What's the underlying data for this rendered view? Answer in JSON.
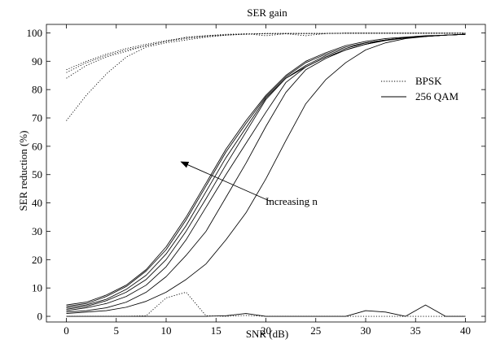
{
  "chart_data": {
    "type": "line",
    "title": "SER gain",
    "xlabel": "SNR (dB)",
    "ylabel": "SER reduction (%)",
    "xlim": [
      -2,
      42
    ],
    "ylim": [
      -2,
      103
    ],
    "xticks": [
      "0",
      "5",
      "10",
      "15",
      "20",
      "25",
      "30",
      "35",
      "40"
    ],
    "yticks": [
      "0",
      "10",
      "20",
      "30",
      "40",
      "50",
      "60",
      "70",
      "80",
      "90",
      "100"
    ],
    "grid": false,
    "legend": {
      "placement": "right",
      "entries": [
        {
          "label": "BPSK",
          "style": "dotted"
        },
        {
          "label": "256 QAM",
          "style": "solid"
        }
      ]
    },
    "annotation": {
      "text": "Increasing n",
      "arrow_from": [
        20.5,
        40.5
      ],
      "arrow_to": [
        11.5,
        54.5
      ]
    },
    "x": [
      0,
      2,
      4,
      6,
      8,
      10,
      12,
      14,
      16,
      18,
      20,
      22,
      24,
      26,
      28,
      30,
      32,
      34,
      36,
      38,
      40
    ],
    "series": [
      {
        "style": "solid",
        "values": [
          4,
          5,
          7.5,
          11,
          16.5,
          24.5,
          35,
          47,
          59,
          69,
          78,
          85,
          90,
          93,
          95.5,
          97,
          98,
          98.5,
          99,
          99.2,
          99.5
        ]
      },
      {
        "style": "solid",
        "values": [
          3.5,
          4.5,
          7,
          10.5,
          16,
          23.5,
          34,
          46,
          58,
          68,
          77.5,
          84.5,
          89.5,
          92.5,
          95,
          96.5,
          97.5,
          98.3,
          98.8,
          99.2,
          99.5
        ]
      },
      {
        "style": "solid",
        "values": [
          3,
          4,
          6,
          9.5,
          14.5,
          22,
          32,
          44,
          56,
          66.5,
          77,
          84,
          88.5,
          92,
          94.5,
          96.5,
          97.5,
          98.3,
          98.8,
          99.2,
          99.5
        ]
      },
      {
        "style": "solid",
        "values": [
          2.5,
          3.5,
          5.5,
          8.5,
          13,
          20,
          30,
          41.5,
          53.5,
          65,
          76.5,
          84,
          88,
          91.5,
          94,
          96,
          97.5,
          98.3,
          98.8,
          99.2,
          99.5
        ]
      },
      {
        "style": "solid",
        "values": [
          2,
          3,
          4.5,
          7,
          11,
          17.5,
          27,
          38.5,
          50,
          61,
          72,
          82.5,
          88,
          91.5,
          94,
          96,
          97.5,
          98.3,
          98.8,
          99.2,
          99.5
        ]
      },
      {
        "style": "solid",
        "values": [
          1.5,
          2,
          3,
          5,
          8.5,
          14,
          21.5,
          30,
          42,
          54,
          67,
          79,
          87,
          91,
          94,
          96,
          97.3,
          98.2,
          98.8,
          99.2,
          99.5
        ]
      },
      {
        "style": "solid",
        "values": [
          1,
          1.5,
          2,
          3.2,
          5.3,
          8.5,
          13,
          18.5,
          27,
          36.5,
          48.5,
          62,
          75,
          83.5,
          89.5,
          94,
          96.5,
          98,
          98.7,
          99.2,
          99.5
        ]
      },
      {
        "style": "solid",
        "values": [
          0,
          0,
          0,
          0,
          0,
          0,
          0,
          0,
          0.2,
          1,
          0,
          0,
          0,
          0,
          0,
          2,
          1.5,
          0,
          4,
          0,
          0
        ]
      },
      {
        "style": "dotted",
        "values": [
          87,
          90,
          92.5,
          94.5,
          96,
          97.3,
          98.3,
          99,
          99.3,
          99.6,
          99.8,
          99.8,
          99.8,
          99.8,
          99.9,
          99.9,
          99.9,
          99.9,
          99.9,
          99.9,
          99.9
        ]
      },
      {
        "style": "dotted",
        "values": [
          86,
          89.5,
          92,
          94,
          95.5,
          97,
          98,
          98.7,
          99.2,
          99.5,
          99.7,
          99.8,
          99.8,
          99.8,
          99.9,
          99.9,
          99.9,
          99.9,
          99.9,
          99.9,
          99.9
        ]
      },
      {
        "style": "dotted",
        "values": [
          84,
          88.5,
          91.5,
          93.5,
          95.5,
          97,
          98.5,
          99,
          99.5,
          99.7,
          99,
          99.7,
          99,
          99.8,
          99.9,
          99.9,
          99.9,
          99.9,
          99.9,
          99.9,
          99.9
        ]
      },
      {
        "style": "dotted",
        "values": [
          69,
          78,
          85.5,
          91.5,
          95,
          96.5,
          97.5,
          98.5,
          99.2,
          99.6,
          99.8,
          99.8,
          99.8,
          99.8,
          99.9,
          99.9,
          99.9,
          99.9,
          99.9,
          99.9,
          99.9
        ]
      },
      {
        "style": "dotted",
        "values": [
          0,
          0,
          0,
          0,
          0.2,
          6.5,
          8.5,
          0.2,
          0,
          0.3,
          0,
          0,
          0,
          0,
          0,
          0,
          0,
          0,
          0,
          0,
          0
        ]
      }
    ]
  }
}
